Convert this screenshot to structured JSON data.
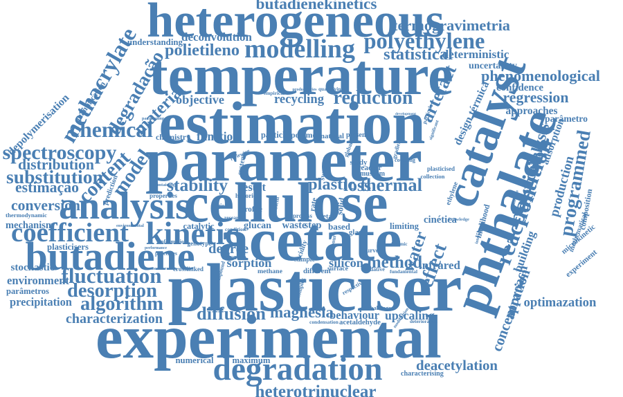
{
  "title": "Word cloud",
  "color": "#4a7fb3",
  "words": {
    "heterogeneous": "heterogeneous",
    "butadienekinetics": "butadienekinetics",
    "termogravimetria": "termogravimetria",
    "deconvolution": "deconvolution",
    "modelling": "modelling",
    "polyethylene": "polyethylene",
    "understanding": "understanding",
    "polietileno": "polietileno",
    "statistical": "statistical",
    "deterministic": "deterministic",
    "uncertainty": "uncertainty",
    "temperature": "temperature",
    "phenomenological": "phenomenological",
    "methacrylate": "methacrylate",
    "degradacao": "degradação",
    "depolymerisation": "depolymerisation",
    "quantification": "quantification",
    "material": "material",
    "objective": "objective",
    "recycling": "recycling",
    "reduction": "reduction",
    "artefact": "artefact",
    "confidence": "confidence",
    "regression": "regression",
    "estimation": "estimation",
    "catalyst": "catalyst",
    "design_termica": "design térmica",
    "approaches": "approaches",
    "parametro": "parâmetro",
    "chemical": "chemical",
    "adsorption": "adsorption",
    "chemistry": "chemistry",
    "function": "function",
    "particle": "particle",
    "polymer": "polymer",
    "natural": "natural",
    "present": "present",
    "spectroscopy": "spectroscopy",
    "parameter": "parameter",
    "phthalate": "phthalate",
    "distribution": "distribution",
    "programmed": "programmed",
    "content": "content",
    "substitution": "substitution",
    "estimacao": "estimação",
    "model": "model",
    "stability": "stability",
    "plastic": "plastic",
    "loss": "loss",
    "thermal": "thermal",
    "cellulose": "cellulose",
    "conversion": "conversion",
    "analysis": "analysis",
    "partition": "partition",
    "production": "production",
    "mechanism": "mechanism",
    "thermodynamic": "thermodynamic",
    "reaction": "reaction",
    "catalysis": "catalysis",
    "coefficient": "coefficient",
    "kinetic": "kinetic",
    "acetate": "acetate",
    "glucan": "glucan",
    "waste": "waste",
    "step": "step",
    "based": "based",
    "limiting": "limiting",
    "cinetica": "cinética",
    "likelihood": "likelihood",
    "composition": "composition",
    "butadiene": "butadiene",
    "plasticisers": "plasticisers",
    "degree": "degree",
    "water": "water",
    "effect": "effect",
    "building": "building",
    "mathematical": "mathematical",
    "microkinetic": "microkinetic",
    "sorption": "sorption",
    "method": "method",
    "infrared": "infrared",
    "stochastic": "stochastic",
    "fluctuation": "fluctuation",
    "silicon": "silicon",
    "concentration": "concentration",
    "approach": "approach",
    "experiment": "experiment",
    "environment": "environment",
    "parametros": "parâmetros",
    "desorption": "desorption",
    "plasticiser": "plasticiser",
    "precipitation": "precipitation",
    "algorithm": "algorithm",
    "optimazation": "optimazation",
    "characterization": "characterization",
    "diffusion": "diffusion",
    "magnesia": "magnesia",
    "behaviour": "behaviour",
    "upscaling": "upscaling",
    "acetaldehyde": "acetaldehyde",
    "experimental": "experimental",
    "numerical": "numerical",
    "maximum": "maximum",
    "degradation": "degradation",
    "deacetylation": "deacetylation",
    "characterising": "characterising",
    "heterotrinuclear": "heterotrinuclear",
    "reactor": "reactor",
    "museum": "museum",
    "collection": "collection",
    "swarm": "swarm",
    "system": "system",
    "result": "result",
    "historic": "historic",
    "profile": "profile",
    "region": "region",
    "catalytic": "catalytic",
    "information": "information",
    "genotype": "genotype",
    "crosslinked": "crosslinked",
    "enxame": "enxame",
    "methane": "methane",
    "different": "different",
    "surface": "surface",
    "oxidative": "oxidative",
    "fundamental": "fundamental",
    "condensation": "condensation",
    "deterioration": "deterioration",
    "ethylene": "ethylene",
    "coupling": "coupling",
    "plasticised": "plasticised",
    "gradient": "gradient",
    "significant": "significant",
    "quantitative": "quantitative",
    "sample": "sample",
    "problem": "problem",
    "empirical": "empirical",
    "productivities": "productivities",
    "quantifying": "quantifying",
    "properties": "properties",
    "prediction": "prediction",
    "rate": "rate",
    "glass": "glass",
    "compound": "compound",
    "vapour": "vapour",
    "dynamic": "dynamic",
    "solid": "solid",
    "reviewing": "reviewing",
    "containing": "containing",
    "partitioning": "partitioning",
    "performance": "performance",
    "processes": "processes",
    "measurement": "measurement",
    "environmental": "environmental",
    "condition": "condition",
    "study": "study",
    "curve": "curve",
    "development": "development",
    "particula": "partícula",
    "knowledge": "knowledge",
    "interaction": "interaction",
    "global": "global",
    "process": "process",
    "research": "research",
    "respective": "respective",
    "complex": "complex",
    "acidity": "acidity",
    "metal": "metal",
    "challenge": "challenge",
    "modification": "modification"
  }
}
